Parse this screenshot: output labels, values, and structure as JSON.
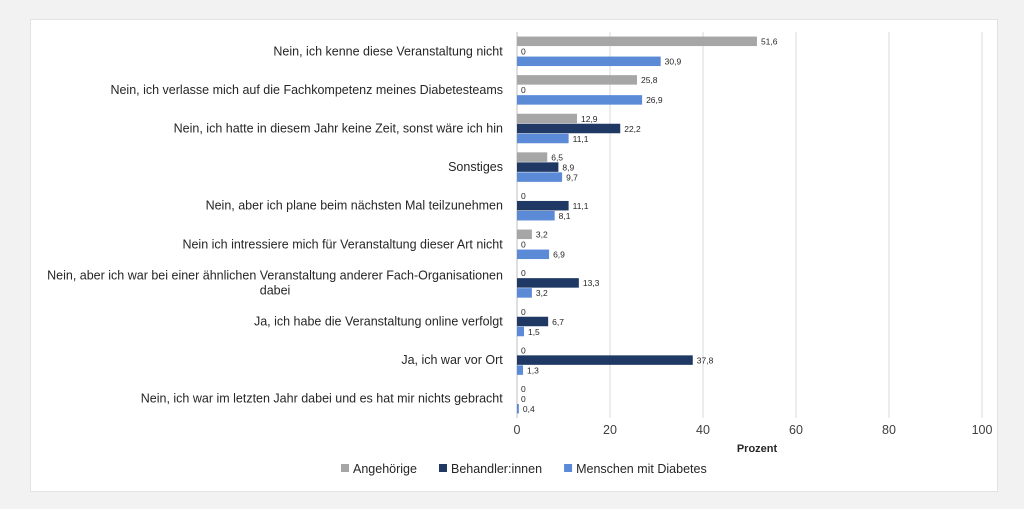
{
  "chart_data": {
    "type": "bar",
    "orientation": "horizontal",
    "categories": [
      [
        "Nein, ich kenne diese Veranstaltung nicht"
      ],
      [
        "Nein, ich verlasse mich auf die Fachkompetenz meines Diabetesteams"
      ],
      [
        "Nein, ich hatte in diesem Jahr keine Zeit, sonst wäre ich hin"
      ],
      [
        "Sonstiges"
      ],
      [
        "Nein, aber ich plane beim nächsten Mal teilzunehmen"
      ],
      [
        "Nein ich intressiere mich für Veranstaltung dieser Art nicht"
      ],
      [
        "Nein, aber ich war bei einer ähnlichen Veranstaltung anderer Fach-Organisationen",
        "dabei"
      ],
      [
        "Ja, ich habe die Veranstaltung online verfolgt"
      ],
      [
        "Ja, ich war vor Ort"
      ],
      [
        "Nein, ich war im letzten Jahr dabei und es hat mir nichts gebracht"
      ]
    ],
    "series": [
      {
        "name": "Angehörige",
        "color": "#a6a6a6",
        "values": [
          51.6,
          25.8,
          12.9,
          6.5,
          0,
          3.2,
          0,
          0,
          0,
          0
        ],
        "labels": [
          "51,6",
          "25,8",
          "12,9",
          "6,5",
          "0",
          "3,2",
          "0",
          "0",
          "0",
          "0"
        ]
      },
      {
        "name": "Behandler:innen",
        "color": "#1f3864",
        "values": [
          0,
          0,
          22.2,
          8.9,
          11.1,
          0,
          13.3,
          6.7,
          37.8,
          0
        ],
        "labels": [
          "0",
          "0",
          "22,2",
          "8,9",
          "11,1",
          "0",
          "13,3",
          "6,7",
          "37,8",
          "0"
        ]
      },
      {
        "name": "Menschen mit Diabetes",
        "color": "#5b8ad6",
        "values": [
          30.9,
          26.9,
          11.1,
          9.7,
          8.1,
          6.9,
          3.2,
          1.5,
          1.3,
          0.4
        ],
        "labels": [
          "30,9",
          "26,9",
          "11,1",
          "9,7",
          "8,1",
          "6,9",
          "3,2",
          "1,5",
          "1,3",
          "0,4"
        ]
      }
    ],
    "xlim": [
      0,
      100
    ],
    "xticks": [
      "0",
      "20",
      "40",
      "60",
      "80",
      "100"
    ],
    "xlabel": "Prozent",
    "ylabel": "",
    "title": "",
    "grid": "vertical",
    "legend": "bottom"
  }
}
